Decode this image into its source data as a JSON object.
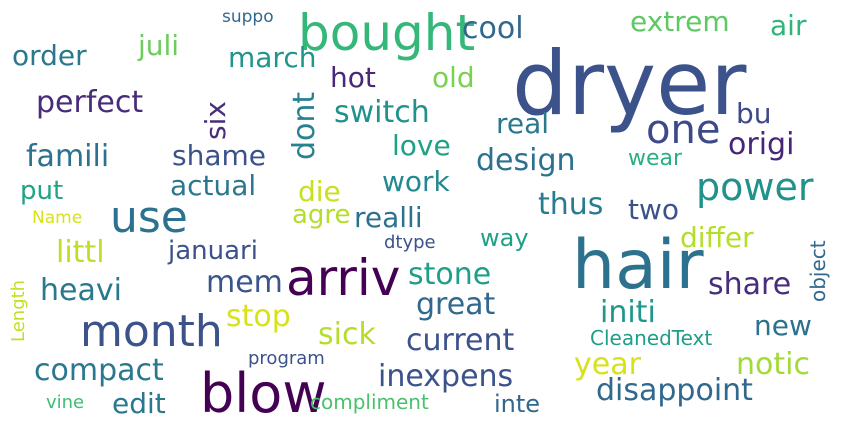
{
  "words": [
    {
      "text": "dryer",
      "color": "#3b528b"
    },
    {
      "text": "hair",
      "color": "#2c728e"
    },
    {
      "text": "bought",
      "color": "#35b779"
    },
    {
      "text": "arriv",
      "color": "#440154"
    },
    {
      "text": "blow",
      "color": "#440154"
    },
    {
      "text": "month",
      "color": "#3b528b"
    },
    {
      "text": "use",
      "color": "#2c728e"
    },
    {
      "text": "one",
      "color": "#3e4989"
    },
    {
      "text": "power",
      "color": "#21918c"
    },
    {
      "text": "cool",
      "color": "#31688e"
    },
    {
      "text": "extrem",
      "color": "#5ec962"
    },
    {
      "text": "air",
      "color": "#2fb47c"
    },
    {
      "text": "suppo",
      "color": "#31688e"
    },
    {
      "text": "juli",
      "color": "#6ccd5a"
    },
    {
      "text": "march",
      "color": "#1f968b"
    },
    {
      "text": "order",
      "color": "#2a788e"
    },
    {
      "text": "hot",
      "color": "#482878"
    },
    {
      "text": "old",
      "color": "#7ad151"
    },
    {
      "text": "perfect",
      "color": "#472c7a"
    },
    {
      "text": "six",
      "color": "#472d7b"
    },
    {
      "text": "dont",
      "color": "#26828e"
    },
    {
      "text": "switch",
      "color": "#21918c"
    },
    {
      "text": "bu",
      "color": "#3e4989"
    },
    {
      "text": "real",
      "color": "#2a788e"
    },
    {
      "text": "origi",
      "color": "#482576"
    },
    {
      "text": "love",
      "color": "#1fa187"
    },
    {
      "text": "famili",
      "color": "#2c728e"
    },
    {
      "text": "shame",
      "color": "#3b528b"
    },
    {
      "text": "design",
      "color": "#2c728e"
    },
    {
      "text": "wear",
      "color": "#2ab07f"
    },
    {
      "text": "put",
      "color": "#20a386"
    },
    {
      "text": "actual",
      "color": "#2a788e"
    },
    {
      "text": "work",
      "color": "#23898e"
    },
    {
      "text": "die",
      "color": "#c8e020"
    },
    {
      "text": "agre",
      "color": "#b5de2b"
    },
    {
      "text": "thus",
      "color": "#287c8e"
    },
    {
      "text": "two",
      "color": "#3b528b"
    },
    {
      "text": "Name",
      "color": "#d8e219"
    },
    {
      "text": "realli",
      "color": "#2c728e"
    },
    {
      "text": "differ",
      "color": "#b5de2b"
    },
    {
      "text": "littl",
      "color": "#bddf26"
    },
    {
      "text": "januari",
      "color": "#3b528b"
    },
    {
      "text": "dtype",
      "color": "#3b528b"
    },
    {
      "text": "way",
      "color": "#1fa187"
    },
    {
      "text": "object",
      "color": "#31688e"
    },
    {
      "text": "Length",
      "color": "#c2df23"
    },
    {
      "text": "mem",
      "color": "#39558c"
    },
    {
      "text": "stone",
      "color": "#1f9e89"
    },
    {
      "text": "share",
      "color": "#472d7b"
    },
    {
      "text": "heavi",
      "color": "#2a788e"
    },
    {
      "text": "great",
      "color": "#31688e"
    },
    {
      "text": "stop",
      "color": "#d8e219"
    },
    {
      "text": "initi",
      "color": "#1f988b"
    },
    {
      "text": "sick",
      "color": "#b5de2b"
    },
    {
      "text": "new",
      "color": "#2c728e"
    },
    {
      "text": "current",
      "color": "#3b528b"
    },
    {
      "text": "CleanedText",
      "color": "#1f9e89"
    },
    {
      "text": "compact",
      "color": "#2a788e"
    },
    {
      "text": "program",
      "color": "#3b528b"
    },
    {
      "text": "year",
      "color": "#d8e219"
    },
    {
      "text": "notic",
      "color": "#a2da37"
    },
    {
      "text": "inexpens",
      "color": "#3b528b"
    },
    {
      "text": "edit",
      "color": "#2a788e"
    },
    {
      "text": "disappoint",
      "color": "#31688e"
    },
    {
      "text": "vine",
      "color": "#3fbc73"
    },
    {
      "text": "compliment",
      "color": "#4ac16d"
    },
    {
      "text": "inte",
      "color": "#31688e"
    }
  ]
}
